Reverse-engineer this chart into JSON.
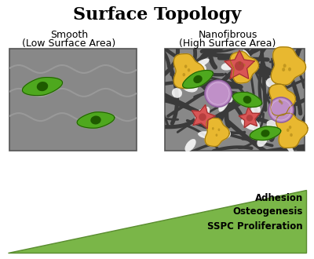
{
  "title": "Surface Topology",
  "left_label_line1": "Smooth",
  "left_label_line2": "(Low Surface Area)",
  "right_label_line1": "Nanofibrous",
  "right_label_line2": "(High Surface Area)",
  "arrow_labels": [
    "Adhesion",
    "Osteogenesis",
    "SSPC Proliferation"
  ],
  "bg_color": "#ffffff",
  "smooth_bg": "#888888",
  "nano_bg": "#aaaaaa",
  "arrow_color": "#7ab648",
  "arrow_edge": "#5a8c30",
  "cell_green_fill": "#4ea81e",
  "cell_green_dark": "#1e5a00",
  "cell_yellow": "#e8b830",
  "cell_yellow_dark": "#a07a10",
  "cell_pink": "#d95555",
  "cell_pink_dark": "#a03030",
  "cell_purple": "#c090c8",
  "cell_purple_dark": "#9060a0",
  "fiber_color": "#3a3a3a",
  "wavy_color": "#999999"
}
